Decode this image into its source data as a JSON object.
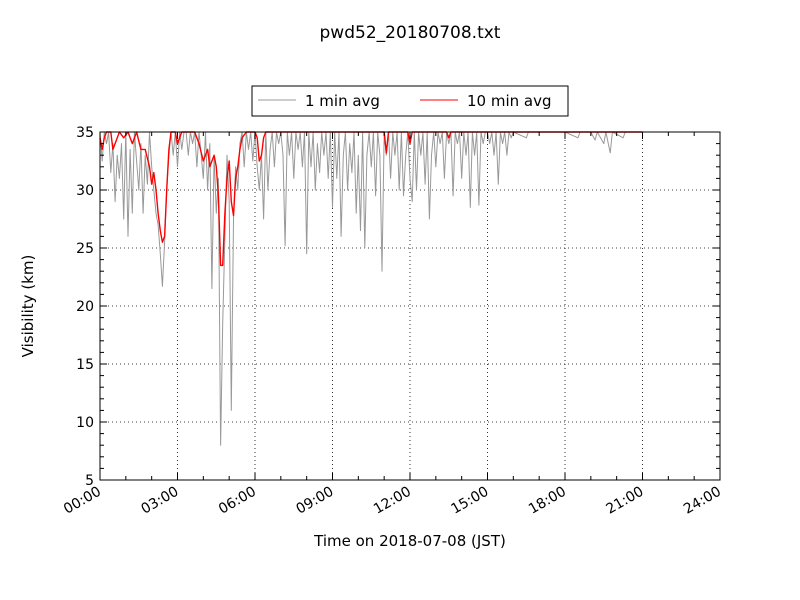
{
  "chart_data": {
    "type": "line",
    "title": "pwd52_20180708.txt",
    "xlabel": "Time on 2018-07-08 (JST)",
    "ylabel": "Visibility (km)",
    "xlim": [
      "00:00",
      "24:00"
    ],
    "ylim": [
      5,
      35
    ],
    "xticks": [
      "00:00",
      "03:00",
      "06:00",
      "09:00",
      "12:00",
      "15:00",
      "18:00",
      "21:00",
      "24:00"
    ],
    "yticks": [
      5,
      10,
      15,
      20,
      25,
      30,
      35
    ],
    "grid": true,
    "legend_position": "top-center",
    "series": [
      {
        "name": "1 min avg",
        "color": "#999999",
        "points": [
          [
            "00:00",
            35
          ],
          [
            "00:05",
            32.5
          ],
          [
            "00:10",
            35
          ],
          [
            "00:15",
            34
          ],
          [
            "00:20",
            35
          ],
          [
            "00:25",
            31.5
          ],
          [
            "00:30",
            34
          ],
          [
            "00:35",
            29
          ],
          [
            "00:40",
            33
          ],
          [
            "00:45",
            31
          ],
          [
            "00:50",
            34
          ],
          [
            "00:55",
            27.5
          ],
          [
            "01:00",
            35
          ],
          [
            "01:05",
            26
          ],
          [
            "01:10",
            33.5
          ],
          [
            "01:15",
            28
          ],
          [
            "01:20",
            35
          ],
          [
            "01:25",
            32.5
          ],
          [
            "01:30",
            30
          ],
          [
            "01:35",
            34
          ],
          [
            "01:40",
            28
          ],
          [
            "01:45",
            33
          ],
          [
            "01:50",
            30.5
          ],
          [
            "01:55",
            35
          ],
          [
            "02:00",
            32
          ],
          [
            "02:05",
            30
          ],
          [
            "02:10",
            28
          ],
          [
            "02:15",
            27
          ],
          [
            "02:20",
            24.5
          ],
          [
            "02:25",
            21.7
          ],
          [
            "02:30",
            25.5
          ],
          [
            "02:35",
            30
          ],
          [
            "02:40",
            33
          ],
          [
            "02:45",
            35
          ],
          [
            "02:50",
            33
          ],
          [
            "02:55",
            35
          ],
          [
            "03:00",
            32
          ],
          [
            "03:05",
            35
          ],
          [
            "03:10",
            33.5
          ],
          [
            "03:15",
            35
          ],
          [
            "03:20",
            35
          ],
          [
            "03:25",
            33
          ],
          [
            "03:30",
            35
          ],
          [
            "03:35",
            34
          ],
          [
            "03:40",
            35
          ],
          [
            "03:45",
            32
          ],
          [
            "03:50",
            35
          ],
          [
            "03:55",
            33
          ],
          [
            "04:00",
            31
          ],
          [
            "04:05",
            35
          ],
          [
            "04:10",
            30
          ],
          [
            "04:15",
            34
          ],
          [
            "04:20",
            21.5
          ],
          [
            "04:25",
            33
          ],
          [
            "04:30",
            28
          ],
          [
            "04:35",
            31
          ],
          [
            "04:40",
            8
          ],
          [
            "04:45",
            18.5
          ],
          [
            "04:50",
            26
          ],
          [
            "04:55",
            33
          ],
          [
            "05:00",
            29
          ],
          [
            "05:05",
            11
          ],
          [
            "05:10",
            27.5
          ],
          [
            "05:15",
            32
          ],
          [
            "05:20",
            30
          ],
          [
            "05:25",
            34
          ],
          [
            "05:30",
            35
          ],
          [
            "05:35",
            32
          ],
          [
            "05:40",
            35
          ],
          [
            "05:45",
            33.5
          ],
          [
            "05:50",
            35
          ],
          [
            "05:55",
            32.5
          ],
          [
            "06:00",
            35
          ],
          [
            "06:05",
            32
          ],
          [
            "06:10",
            30
          ],
          [
            "06:15",
            33
          ],
          [
            "06:20",
            27.5
          ],
          [
            "06:25",
            35
          ],
          [
            "06:30",
            30
          ],
          [
            "06:35",
            33.5
          ],
          [
            "06:40",
            35
          ],
          [
            "06:45",
            32
          ],
          [
            "06:50",
            35
          ],
          [
            "06:55",
            34
          ],
          [
            "07:00",
            35
          ],
          [
            "07:05",
            33
          ],
          [
            "07:10",
            25.2
          ],
          [
            "07:15",
            35
          ],
          [
            "07:20",
            33
          ],
          [
            "07:25",
            35
          ],
          [
            "07:30",
            31
          ],
          [
            "07:35",
            35
          ],
          [
            "07:40",
            33.5
          ],
          [
            "07:45",
            35
          ],
          [
            "07:50",
            32
          ],
          [
            "07:55",
            35
          ],
          [
            "08:00",
            24.5
          ],
          [
            "08:05",
            35
          ],
          [
            "08:10",
            32
          ],
          [
            "08:15",
            35
          ],
          [
            "08:20",
            30
          ],
          [
            "08:25",
            34
          ],
          [
            "08:30",
            31.5
          ],
          [
            "08:35",
            35
          ],
          [
            "08:40",
            33
          ],
          [
            "08:45",
            35
          ],
          [
            "08:50",
            31
          ],
          [
            "08:55",
            35
          ],
          [
            "09:00",
            28.5
          ],
          [
            "09:05",
            35
          ],
          [
            "09:10",
            31
          ],
          [
            "09:15",
            35
          ],
          [
            "09:20",
            26
          ],
          [
            "09:25",
            33
          ],
          [
            "09:30",
            35
          ],
          [
            "09:35",
            30
          ],
          [
            "09:40",
            34
          ],
          [
            "09:45",
            31.5
          ],
          [
            "09:50",
            35
          ],
          [
            "09:55",
            28
          ],
          [
            "10:00",
            33
          ],
          [
            "10:05",
            26.5
          ],
          [
            "10:10",
            35
          ],
          [
            "10:15",
            25
          ],
          [
            "10:20",
            33
          ],
          [
            "10:25",
            35
          ],
          [
            "10:30",
            32
          ],
          [
            "10:35",
            35
          ],
          [
            "10:40",
            29.5
          ],
          [
            "10:45",
            35
          ],
          [
            "10:50",
            33
          ],
          [
            "10:55",
            23
          ],
          [
            "11:00",
            35
          ],
          [
            "11:05",
            33
          ],
          [
            "11:10",
            35
          ],
          [
            "11:15",
            31
          ],
          [
            "11:20",
            35
          ],
          [
            "11:25",
            33
          ],
          [
            "11:30",
            35
          ],
          [
            "11:35",
            30
          ],
          [
            "11:40",
            35
          ],
          [
            "11:45",
            29.5
          ],
          [
            "11:50",
            33
          ],
          [
            "11:55",
            35
          ],
          [
            "12:00",
            31
          ],
          [
            "12:05",
            29
          ],
          [
            "12:10",
            35
          ],
          [
            "12:15",
            30
          ],
          [
            "12:20",
            35
          ],
          [
            "12:25",
            33
          ],
          [
            "12:30",
            35
          ],
          [
            "12:35",
            30.5
          ],
          [
            "12:40",
            35
          ],
          [
            "12:45",
            27.5
          ],
          [
            "12:50",
            33
          ],
          [
            "12:55",
            35
          ],
          [
            "13:00",
            32
          ],
          [
            "13:05",
            35
          ],
          [
            "13:10",
            34
          ],
          [
            "13:15",
            35
          ],
          [
            "13:20",
            31
          ],
          [
            "13:25",
            35
          ],
          [
            "13:30",
            34
          ],
          [
            "13:35",
            35
          ],
          [
            "13:40",
            29.5
          ],
          [
            "13:45",
            35
          ],
          [
            "13:50",
            34
          ],
          [
            "13:55",
            35
          ],
          [
            "14:00",
            31
          ],
          [
            "14:05",
            35
          ],
          [
            "14:10",
            33
          ],
          [
            "14:15",
            35
          ],
          [
            "14:20",
            28.5
          ],
          [
            "14:25",
            35
          ],
          [
            "14:30",
            33
          ],
          [
            "14:35",
            35
          ],
          [
            "14:40",
            28.7
          ],
          [
            "14:45",
            35
          ],
          [
            "14:50",
            34
          ],
          [
            "14:55",
            35
          ],
          [
            "15:00",
            35
          ],
          [
            "15:05",
            34
          ],
          [
            "15:10",
            35
          ],
          [
            "15:15",
            33
          ],
          [
            "15:20",
            35
          ],
          [
            "15:25",
            30.5
          ],
          [
            "15:30",
            35
          ],
          [
            "15:35",
            34
          ],
          [
            "15:40",
            35
          ],
          [
            "15:45",
            33
          ],
          [
            "15:50",
            35
          ],
          [
            "15:55",
            34.5
          ],
          [
            "16:00",
            35
          ],
          [
            "16:30",
            34.5
          ],
          [
            "16:35",
            35
          ],
          [
            "17:00",
            35
          ],
          [
            "18:00",
            35
          ],
          [
            "18:30",
            34.5
          ],
          [
            "18:35",
            35
          ],
          [
            "19:00",
            35
          ],
          [
            "19:10",
            34.3
          ],
          [
            "19:15",
            35
          ],
          [
            "19:30",
            34
          ],
          [
            "19:35",
            35
          ],
          [
            "19:45",
            33.2
          ],
          [
            "19:50",
            35
          ],
          [
            "20:15",
            34.5
          ],
          [
            "20:20",
            35
          ],
          [
            "21:00",
            35
          ]
        ]
      },
      {
        "name": "10 min avg",
        "color": "#ff0000",
        "points": [
          [
            "00:00",
            34.5
          ],
          [
            "00:05",
            33.5
          ],
          [
            "00:10",
            34.5
          ],
          [
            "00:15",
            35
          ],
          [
            "00:25",
            35
          ],
          [
            "00:30",
            33.5
          ],
          [
            "00:35",
            34
          ],
          [
            "00:45",
            35
          ],
          [
            "00:55",
            34.5
          ],
          [
            "01:05",
            35
          ],
          [
            "01:15",
            34
          ],
          [
            "01:25",
            35
          ],
          [
            "01:35",
            33.5
          ],
          [
            "01:45",
            33.5
          ],
          [
            "01:55",
            32
          ],
          [
            "02:00",
            30.5
          ],
          [
            "02:05",
            31.5
          ],
          [
            "02:10",
            30
          ],
          [
            "02:15",
            28
          ],
          [
            "02:20",
            26.5
          ],
          [
            "02:25",
            25.5
          ],
          [
            "02:30",
            26
          ],
          [
            "02:35",
            30
          ],
          [
            "02:40",
            33.5
          ],
          [
            "02:45",
            35
          ],
          [
            "02:55",
            35
          ],
          [
            "03:00",
            34
          ],
          [
            "03:10",
            35
          ],
          [
            "03:40",
            35
          ],
          [
            "03:50",
            34
          ],
          [
            "04:00",
            32.5
          ],
          [
            "04:10",
            33.5
          ],
          [
            "04:15",
            32
          ],
          [
            "04:25",
            33
          ],
          [
            "04:30",
            32
          ],
          [
            "04:35",
            29.5
          ],
          [
            "04:40",
            23.5
          ],
          [
            "04:45",
            23.5
          ],
          [
            "04:50",
            28
          ],
          [
            "04:55",
            31
          ],
          [
            "05:00",
            32.5
          ],
          [
            "05:05",
            29
          ],
          [
            "05:10",
            27.8
          ],
          [
            "05:15",
            31
          ],
          [
            "05:20",
            32
          ],
          [
            "05:25",
            33.5
          ],
          [
            "05:30",
            34.5
          ],
          [
            "05:40",
            35
          ],
          [
            "06:00",
            35
          ],
          [
            "06:05",
            34.5
          ],
          [
            "06:10",
            32.5
          ],
          [
            "06:15",
            33
          ],
          [
            "06:20",
            34.5
          ],
          [
            "06:25",
            35
          ],
          [
            "11:00",
            35
          ],
          [
            "11:05",
            33.2
          ],
          [
            "11:10",
            35
          ],
          [
            "11:55",
            35
          ],
          [
            "12:00",
            34
          ],
          [
            "12:05",
            35
          ],
          [
            "13:25",
            35
          ],
          [
            "13:30",
            34.5
          ],
          [
            "13:35",
            35
          ],
          [
            "21:00",
            35
          ]
        ]
      }
    ]
  }
}
